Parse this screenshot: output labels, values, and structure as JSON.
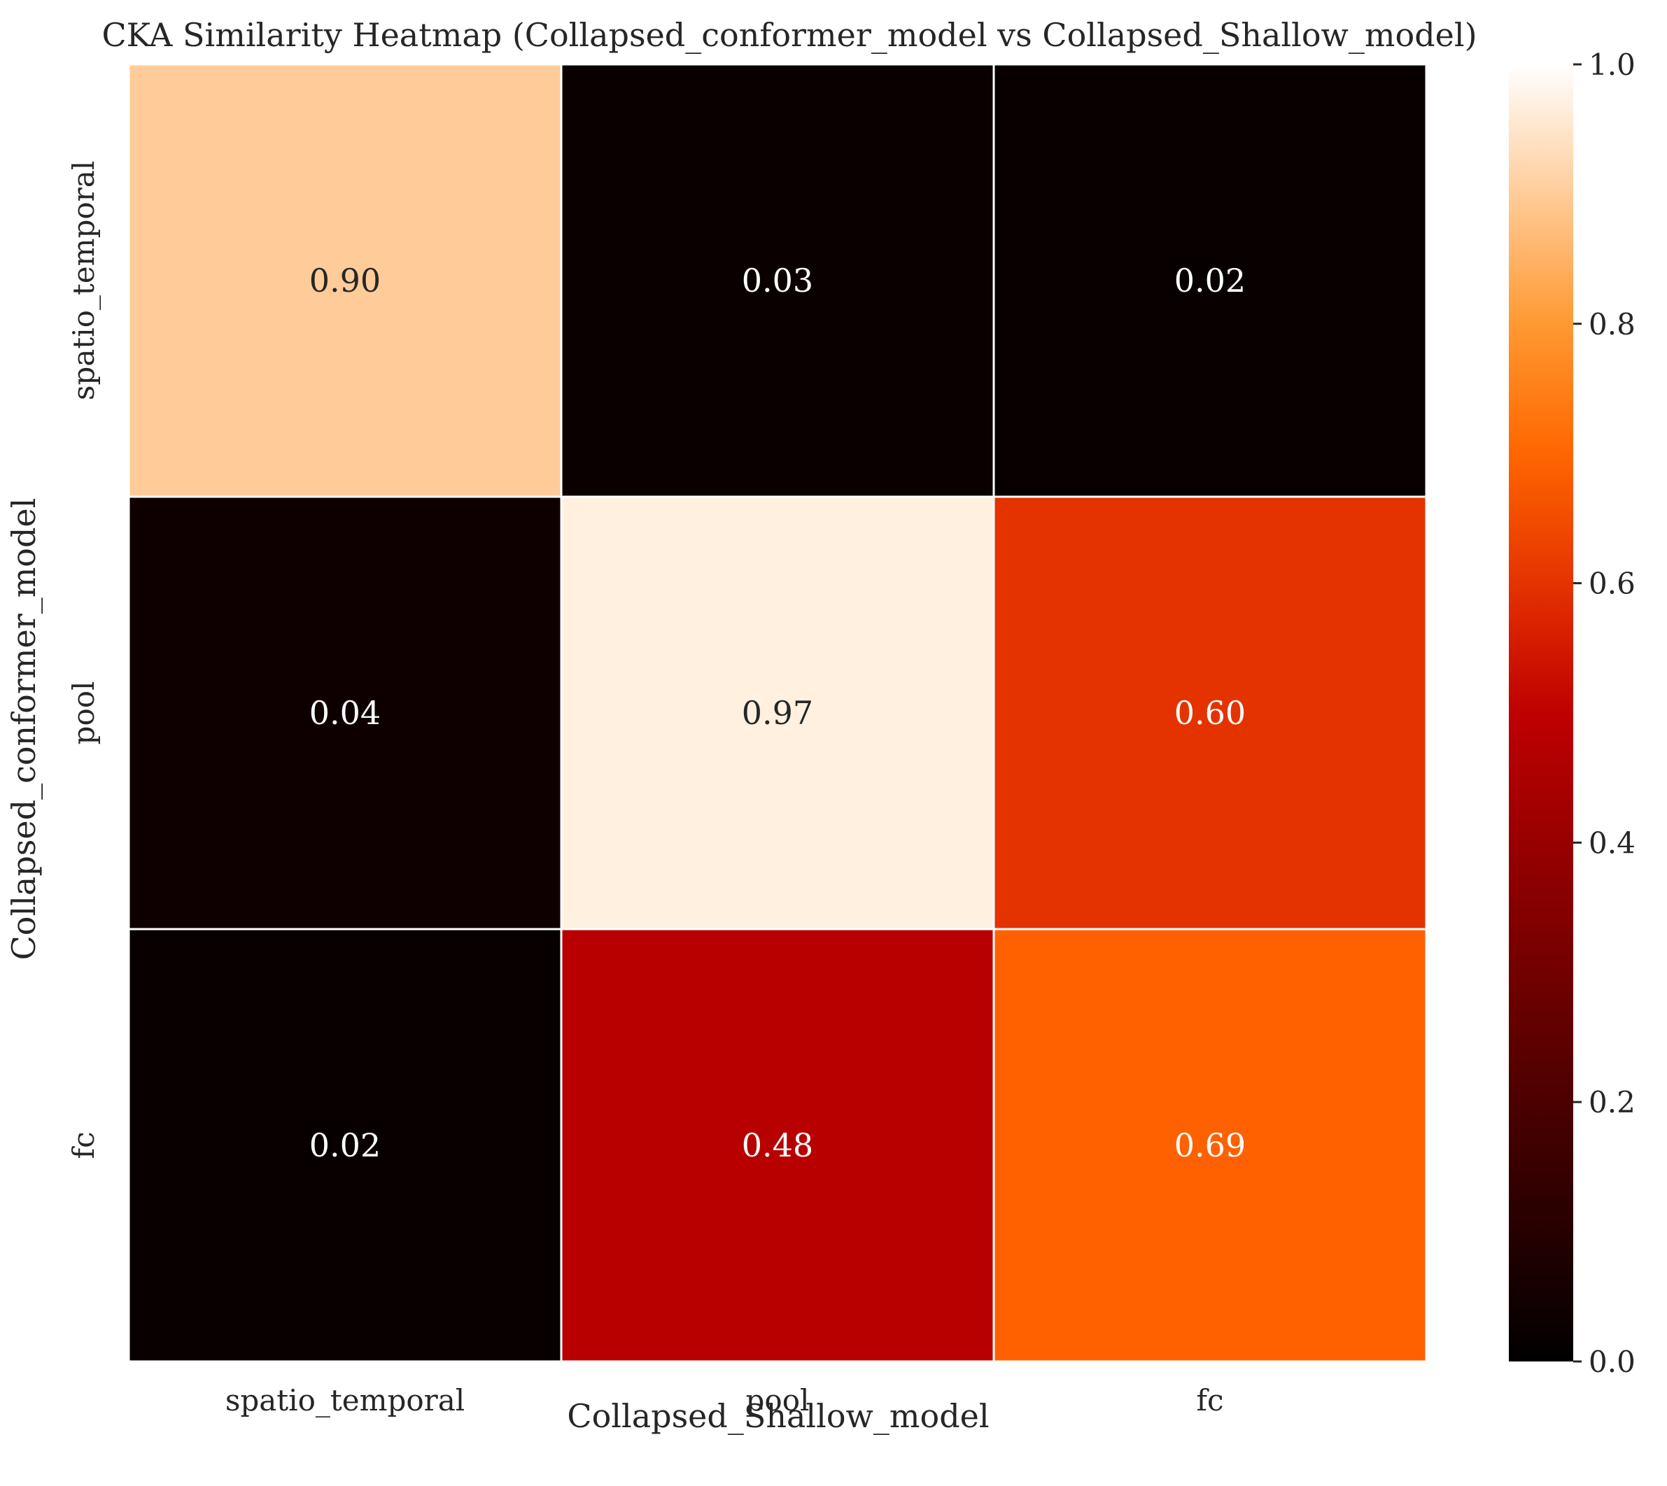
{
  "chart_data": {
    "type": "heatmap",
    "title": "CKA Similarity Heatmap (Collapsed_conformer_model vs Collapsed_Shallow_model)",
    "xlabel": "Collapsed_Shallow_model",
    "ylabel": "Collapsed_conformer_model",
    "x_categories": [
      "spatio_temporal",
      "pool",
      "fc"
    ],
    "y_categories": [
      "spatio_temporal",
      "pool",
      "fc"
    ],
    "values": [
      [
        0.9,
        0.03,
        0.02
      ],
      [
        0.04,
        0.97,
        0.6
      ],
      [
        0.02,
        0.48,
        0.69
      ]
    ],
    "cell_labels": [
      [
        "0.90",
        "0.03",
        "0.02"
      ],
      [
        "0.04",
        "0.97",
        "0.60"
      ],
      [
        "0.02",
        "0.48",
        "0.69"
      ]
    ],
    "colormap": "gist_heat",
    "colorbar": {
      "range": [
        0.0,
        1.0
      ],
      "ticks": [
        0.0,
        0.2,
        0.4,
        0.6,
        0.8,
        1.0
      ],
      "tick_labels": [
        "0.0",
        "0.2",
        "0.4",
        "0.6",
        "0.8",
        "1.0"
      ]
    },
    "grid": false,
    "cell_border_color": "#ffffff"
  }
}
